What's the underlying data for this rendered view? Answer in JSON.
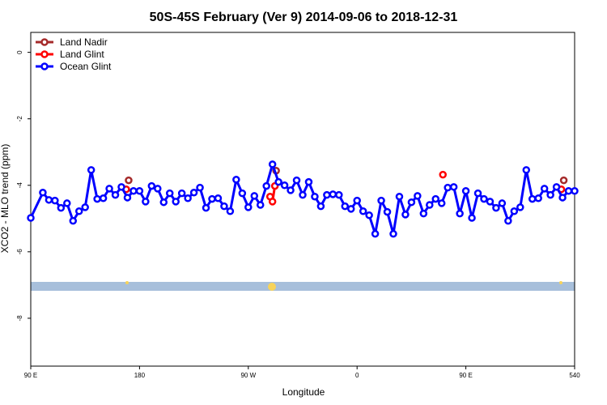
{
  "chart_data": {
    "type": "line",
    "title": "50S-45S February (Ver 9)   2014-09-06 to 2018-12-31",
    "x_label": "Longitude",
    "y_label": "XCO2 - MLO trend (ppm)",
    "xlim": [
      90,
      540
    ],
    "xticks": [
      {
        "value": 90,
        "label": "90 E"
      },
      180,
      {
        "value": 270,
        "label": "90 W"
      },
      {
        "value": 360,
        "label": "0"
      },
      {
        "value": 450,
        "label": "90 E"
      },
      540
    ],
    "ylim": [
      -9.44,
      0.6
    ],
    "yticks": [
      0,
      -2,
      -4,
      -6,
      -8
    ],
    "legend": "top-left",
    "series": [
      {
        "name": "Land Nadir",
        "color": "#a52a2a",
        "x": [
          171,
          176,
          293,
          298,
          531
        ],
        "values": [
          -3.85,
          null,
          -3.56,
          null,
          -3.85
        ]
      },
      {
        "name": "Land Glint",
        "color": "#ff0000",
        "x": [
          169,
          174,
          288,
          290,
          292,
          297,
          431,
          436,
          529
        ],
        "values": [
          -4.12,
          null,
          -4.34,
          -4.49,
          -4.02,
          null,
          -3.68,
          null,
          -4.12
        ]
      },
      {
        "name": "Ocean Glint",
        "color": "#0000ff",
        "x": [
          90,
          100,
          105,
          110,
          115,
          120,
          125,
          130,
          135,
          140,
          145,
          150,
          155,
          160,
          165,
          170,
          175,
          180,
          185,
          190,
          195,
          200,
          205,
          210,
          215,
          220,
          225,
          230,
          235,
          240,
          245,
          250,
          255,
          260,
          265,
          270,
          275,
          280,
          285,
          290,
          295,
          300,
          305,
          310,
          315,
          320,
          325,
          330,
          335,
          340,
          345,
          350,
          355,
          360,
          365,
          370,
          375,
          380,
          385,
          390,
          395,
          400,
          405,
          410,
          415,
          420,
          425,
          430,
          435,
          440,
          445,
          450,
          455,
          460,
          465,
          470,
          475,
          480,
          485,
          490,
          495,
          500,
          505,
          510,
          515,
          520,
          525,
          530,
          535,
          540
        ],
        "values": [
          -4.98,
          -4.22,
          -4.44,
          -4.46,
          -4.68,
          -4.54,
          -5.07,
          -4.78,
          -4.66,
          -3.54,
          -4.41,
          -4.39,
          -4.1,
          -4.29,
          -4.05,
          -4.37,
          -4.17,
          -4.17,
          -4.49,
          -4.02,
          -4.1,
          -4.51,
          -4.24,
          -4.49,
          -4.24,
          -4.39,
          -4.22,
          -4.07,
          -4.68,
          -4.41,
          -4.39,
          -4.63,
          -4.78,
          -3.83,
          -4.24,
          -4.66,
          -4.32,
          -4.59,
          -4.02,
          -3.37,
          -3.9,
          -4.0,
          -4.15,
          -3.85,
          -4.29,
          -3.9,
          -4.34,
          -4.63,
          -4.29,
          -4.27,
          -4.29,
          -4.63,
          -4.71,
          -4.46,
          -4.78,
          -4.9,
          -5.46,
          -4.46,
          -4.8,
          -5.46,
          -4.34,
          -4.88,
          -4.51,
          -4.32,
          -4.85,
          -4.59,
          -4.41,
          -4.54,
          -4.07,
          -4.05,
          -4.85,
          -4.17,
          -4.98,
          -4.24,
          -4.41,
          -4.49,
          -4.68,
          -4.54,
          -5.07,
          -4.78,
          -4.66,
          -3.54,
          -4.41,
          -4.39,
          -4.1,
          -4.29,
          -4.05,
          -4.37,
          -4.17,
          -4.17
        ]
      }
    ]
  }
}
